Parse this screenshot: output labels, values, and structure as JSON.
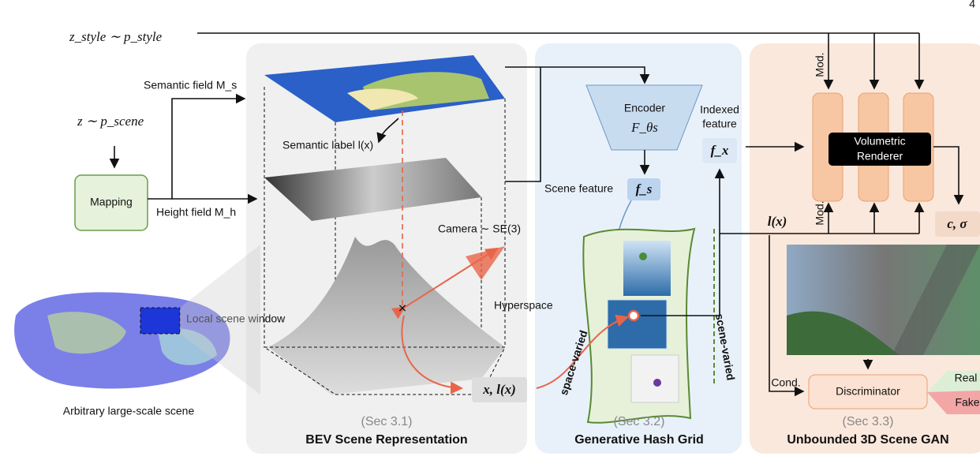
{
  "page_number": "4",
  "inputs": {
    "style_noise": "z_style ∼ p_style",
    "scene_noise": "z ∼ p_scene",
    "mapping": "Mapping",
    "semantic_field": "Semantic field M_s",
    "height_field": "Height field M_h"
  },
  "scene": {
    "local_window": "Local scene window",
    "caption": "Arbitrary large-scale scene"
  },
  "bev": {
    "semantic_label": "Semantic label l(x)",
    "camera": "Camera ∼ SE(3)",
    "hyperspace": "Hyperspace",
    "point": "x, l(x)",
    "section": "(Sec 3.1)",
    "title": "BEV Scene Representation"
  },
  "hash_grid": {
    "encoder": "Encoder",
    "encoder_symbol": "F_θs",
    "scene_feature": "Scene feature",
    "scene_feature_symbol": "f_s",
    "indexed_feature": "Indexed",
    "indexed_feature_2": "feature",
    "indexed_symbol": "f_x",
    "space_varied": "space-varied",
    "scene_varied": "scene-varied",
    "section": "(Sec 3.2)",
    "title": "Generative Hash Grid"
  },
  "gan": {
    "mod_top": "Mod.",
    "mod_bottom": "Mod.",
    "renderer": "Volumetric",
    "renderer_2": "Renderer",
    "label": "l(x)",
    "output": "c, σ",
    "cond": "Cond.",
    "discriminator": "Discriminator",
    "real": "Real",
    "fake": "Fake",
    "section": "(Sec 3.3)",
    "title": "Unbounded 3D Scene GAN"
  }
}
